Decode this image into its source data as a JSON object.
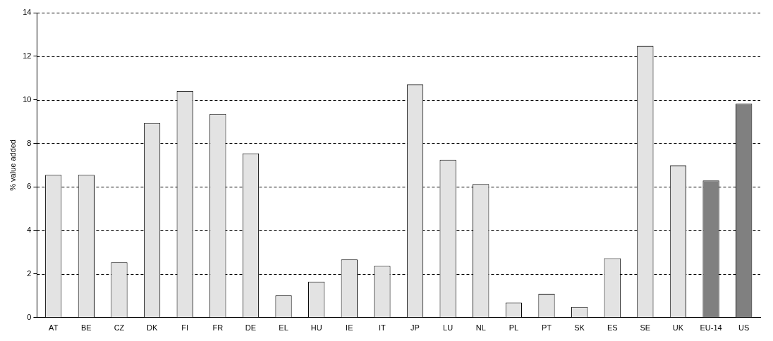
{
  "chart_data": {
    "type": "bar",
    "ylabel": "% value added",
    "categories": [
      "AT",
      "BE",
      "CZ",
      "DK",
      "FI",
      "FR",
      "DE",
      "EL",
      "HU",
      "IE",
      "IT",
      "JP",
      "LU",
      "NL",
      "PL",
      "PT",
      "SK",
      "ES",
      "SE",
      "UK",
      "EU-14",
      "US"
    ],
    "values": [
      6.55,
      6.55,
      2.54,
      8.93,
      10.41,
      9.35,
      7.54,
      1.02,
      1.65,
      2.67,
      2.37,
      10.7,
      7.25,
      6.13,
      0.69,
      1.09,
      0.49,
      2.73,
      12.48,
      6.98,
      6.29,
      9.82
    ],
    "colors": [
      "#e3e3e3",
      "#e3e3e3",
      "#e3e3e3",
      "#e3e3e3",
      "#e3e3e3",
      "#e3e3e3",
      "#e3e3e3",
      "#e3e3e3",
      "#e3e3e3",
      "#e3e3e3",
      "#e3e3e3",
      "#e3e3e3",
      "#e3e3e3",
      "#e3e3e3",
      "#e3e3e3",
      "#e3e3e3",
      "#e3e3e3",
      "#e3e3e3",
      "#e3e3e3",
      "#e3e3e3",
      "#808080",
      "#808080"
    ],
    "ylim": [
      0,
      14
    ],
    "yticks": [
      0,
      2,
      4,
      6,
      8,
      10,
      12,
      14
    ],
    "grid": "y",
    "legend": false
  }
}
